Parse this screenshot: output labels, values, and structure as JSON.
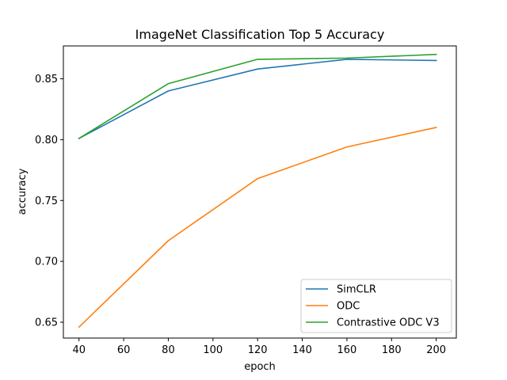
{
  "chart_data": {
    "type": "line",
    "title": "ImageNet Classification Top 5 Accuracy",
    "xlabel": "epoch",
    "ylabel": "accuracy",
    "x": [
      40,
      80,
      120,
      160,
      200
    ],
    "xlim": [
      33,
      209
    ],
    "ylim": [
      0.637,
      0.877
    ],
    "xticks": [
      40,
      60,
      80,
      100,
      120,
      140,
      160,
      180,
      200
    ],
    "yticks": [
      0.65,
      0.7,
      0.75,
      0.8,
      0.85
    ],
    "ytick_labels": [
      "0.65",
      "0.70",
      "0.75",
      "0.80",
      "0.85"
    ],
    "grid": false,
    "legend_position": "lower-right",
    "series": [
      {
        "name": "SimCLR",
        "color": "#1f77b4",
        "values": [
          0.801,
          0.84,
          0.858,
          0.866,
          0.865
        ]
      },
      {
        "name": "ODC",
        "color": "#ff7f0e",
        "values": [
          0.646,
          0.717,
          0.768,
          0.794,
          0.81
        ]
      },
      {
        "name": "Contrastive ODC V3",
        "color": "#2ca02c",
        "values": [
          0.801,
          0.846,
          0.866,
          0.867,
          0.87
        ]
      }
    ]
  }
}
